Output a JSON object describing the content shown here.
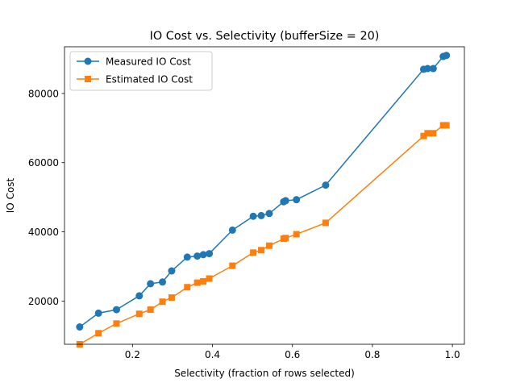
{
  "chart_data": {
    "type": "line",
    "title": "IO Cost vs. Selectivity (bufferSize = 20)",
    "xlabel": "Selectivity (fraction of rows selected)",
    "ylabel": "IO Cost",
    "xlim": [
      0.03,
      1.03
    ],
    "ylim": [
      7500,
      93500
    ],
    "xticks": [
      0.2,
      0.4,
      0.6,
      0.8,
      1.0
    ],
    "xtick_labels": [
      "0.2",
      "0.4",
      "0.6",
      "0.8",
      "1.0"
    ],
    "yticks": [
      20000,
      40000,
      60000,
      80000
    ],
    "ytick_labels": [
      "20000",
      "40000",
      "60000",
      "80000"
    ],
    "grid": false,
    "legend_position": "top-left",
    "x": [
      0.068,
      0.115,
      0.16,
      0.217,
      0.245,
      0.275,
      0.298,
      0.337,
      0.362,
      0.377,
      0.392,
      0.45,
      0.502,
      0.522,
      0.542,
      0.578,
      0.583,
      0.61,
      0.683,
      0.928,
      0.938,
      0.952,
      0.977,
      0.985
    ],
    "series": [
      {
        "name": "Measured IO Cost",
        "color": "#1f77b4",
        "marker": "circle",
        "values": [
          12500,
          16500,
          17500,
          21500,
          25000,
          25500,
          28700,
          32700,
          33000,
          33400,
          33700,
          40500,
          44500,
          44700,
          45300,
          48700,
          49000,
          49300,
          53500,
          87000,
          87200,
          87200,
          90700,
          91000
        ]
      },
      {
        "name": "Estimated IO Cost",
        "color": "#ff7f0e",
        "marker": "square",
        "values": [
          7500,
          10700,
          13500,
          16300,
          17500,
          19800,
          21000,
          24000,
          25300,
          25700,
          26500,
          30200,
          34000,
          34700,
          36000,
          38000,
          38200,
          39300,
          42600,
          67700,
          68500,
          68500,
          70800,
          70800
        ]
      }
    ]
  }
}
